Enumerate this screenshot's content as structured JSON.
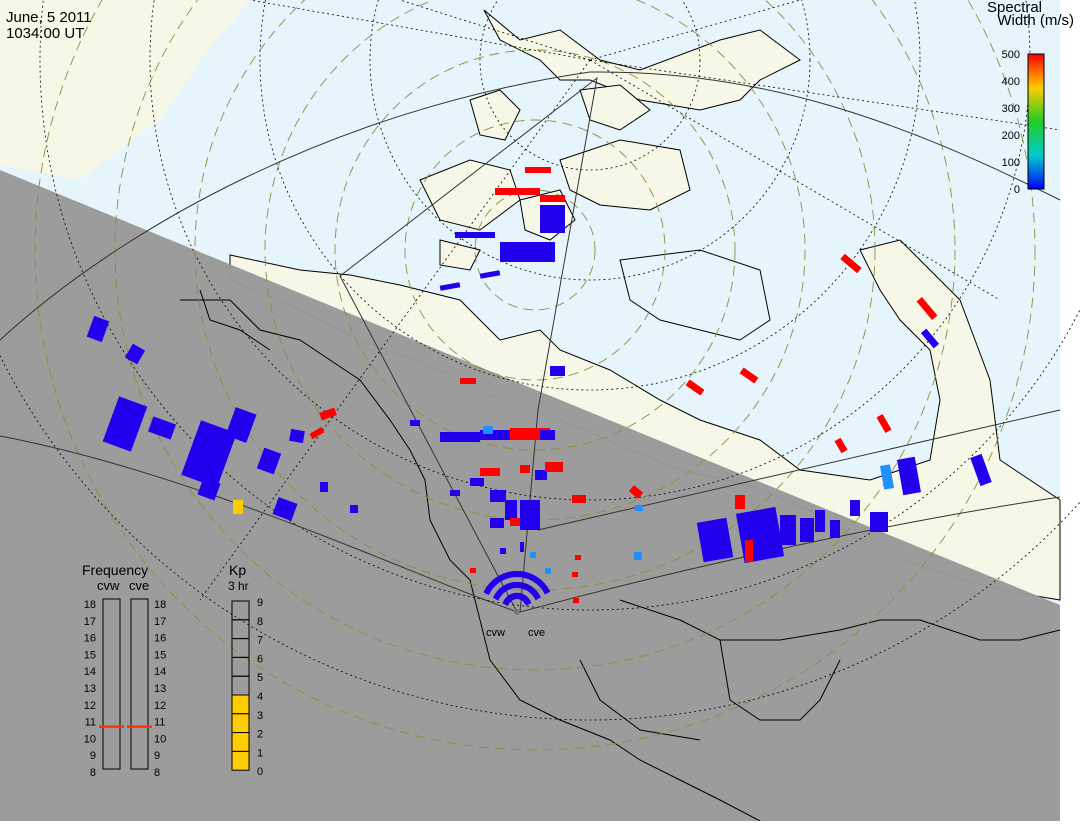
{
  "header": {
    "date": "June, 5 2011",
    "time": "1034:00 UT"
  },
  "colorbar": {
    "title_line1": "Spectral",
    "title_line2": "Width (m/s)",
    "ticks": [
      "500",
      "400",
      "300",
      "200",
      "100",
      "0"
    ],
    "colors": [
      "#ff0000",
      "#ffcc00",
      "#22cc22",
      "#00cccc",
      "#0000ff"
    ]
  },
  "frequency": {
    "title": "Frequency",
    "radars": [
      "cvw",
      "cve"
    ],
    "scale": [
      "18",
      "17",
      "16",
      "15",
      "14",
      "13",
      "12",
      "11",
      "10",
      "9",
      "8"
    ],
    "current_mhz": [
      10.7,
      10.7
    ],
    "marker_color": "#ff3300"
  },
  "kp": {
    "title": "Kp",
    "subtitle": "3 hr",
    "scale": [
      "9",
      "8",
      "7",
      "6",
      "5",
      "4",
      "3",
      "2",
      "1",
      "0"
    ],
    "value": 4,
    "fill_color": "#ffcc00"
  },
  "radar_sites": [
    "cvw",
    "cve"
  ],
  "map_colors": {
    "ocean": "#e6f4fb",
    "land": "#f7f7e8",
    "night": "#999999",
    "low_width": "#2200ee",
    "high_width": "#ff0000"
  }
}
